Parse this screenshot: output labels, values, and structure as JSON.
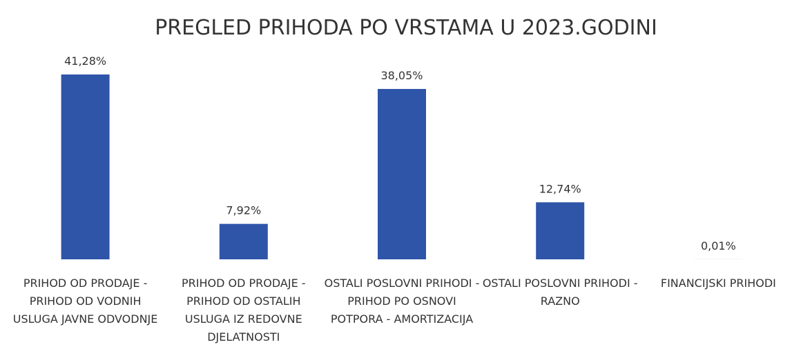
{
  "chart_data": {
    "type": "bar",
    "title": "PREGLED PRIHODA PO VRSTAMA U 2023.GODINI",
    "categories": [
      "PRIHOD OD PRODAJE - PRIHOD OD VODNIH USLUGA JAVNE ODVODNJE",
      "PRIHOD OD PRODAJE - PRIHOD OD OSTALIH USLUGA IZ REDOVNE DJELATNOSTI",
      "OSTALI POSLOVNI PRIHODI - PRIHOD PO OSNOVI POTPORA - AMORTIZACIJA",
      "OSTALI POSLOVNI PRIHODI - RAZNO",
      "FINANCIJSKI PRIHODI"
    ],
    "values": [
      41.28,
      7.92,
      38.05,
      12.74,
      0.01
    ],
    "value_labels": [
      "41,28%",
      "7,92%",
      "38,05%",
      "12,74%",
      "0,01%"
    ],
    "color": "#2f55a9"
  }
}
